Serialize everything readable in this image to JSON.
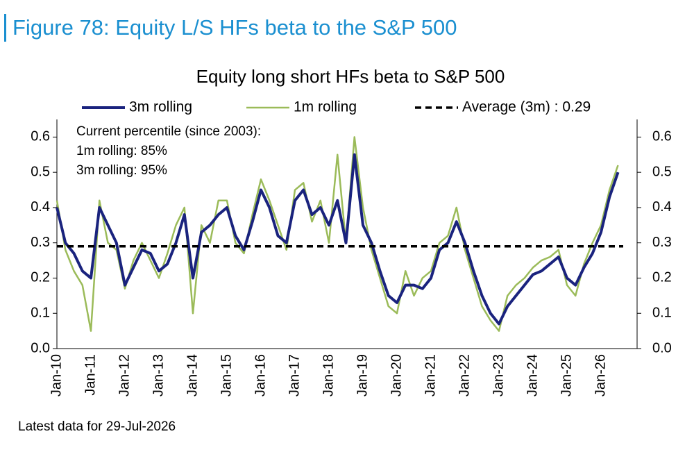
{
  "figure_title": "Figure 78: Equity L/S HFs beta to the S&P 500",
  "footnote": "Latest data for 29-Jul-2026",
  "chart_data": {
    "type": "line",
    "title": "Equity long short HFs beta to S&P 500",
    "annotations": [
      "Current percentile (since 2003):",
      "1m rolling: 85%",
      "3m rolling: 95%"
    ],
    "categories": [
      "Jan-10",
      null,
      null,
      null,
      "Jan-11",
      null,
      null,
      null,
      "Jan-12",
      null,
      null,
      null,
      "Jan-13",
      null,
      null,
      null,
      "Jan-14",
      null,
      null,
      null,
      "Jan-15",
      null,
      null,
      null,
      "Jan-16",
      null,
      null,
      null,
      "Jan-17",
      null,
      null,
      null,
      "Jan-18",
      null,
      null,
      null,
      "Jan-19",
      null,
      null,
      null,
      "Jan-20",
      null,
      null,
      null,
      "Jan-21",
      null,
      null,
      null,
      "Jan-22",
      null,
      null,
      null,
      "Jan-23",
      null,
      null,
      null,
      "Jan-24",
      null,
      null,
      null,
      "Jan-25",
      null,
      null,
      null,
      "Jan-26",
      null,
      null
    ],
    "series": [
      {
        "name": "3m rolling",
        "color": "#1a237e",
        "values": [
          0.4,
          0.3,
          0.27,
          0.22,
          0.2,
          0.4,
          0.35,
          0.3,
          0.18,
          0.23,
          0.28,
          0.27,
          0.22,
          0.24,
          0.3,
          0.38,
          0.2,
          0.33,
          0.35,
          0.38,
          0.4,
          0.32,
          0.28,
          0.36,
          0.45,
          0.4,
          0.32,
          0.3,
          0.42,
          0.45,
          0.38,
          0.4,
          0.35,
          0.42,
          0.3,
          0.55,
          0.35,
          0.3,
          0.22,
          0.15,
          0.13,
          0.18,
          0.18,
          0.17,
          0.2,
          0.28,
          0.3,
          0.36,
          0.3,
          0.22,
          0.15,
          0.1,
          0.07,
          0.12,
          0.15,
          0.18,
          0.21,
          0.22,
          0.24,
          0.26,
          0.2,
          0.18,
          0.23,
          0.27,
          0.33,
          0.43,
          0.5
        ]
      },
      {
        "name": "1m rolling",
        "color": "#9bbb59",
        "values": [
          0.42,
          0.28,
          0.22,
          0.18,
          0.05,
          0.42,
          0.3,
          0.28,
          0.17,
          0.25,
          0.3,
          0.25,
          0.2,
          0.27,
          0.35,
          0.4,
          0.1,
          0.35,
          0.3,
          0.42,
          0.42,
          0.3,
          0.27,
          0.38,
          0.48,
          0.42,
          0.35,
          0.28,
          0.45,
          0.47,
          0.36,
          0.42,
          0.3,
          0.55,
          0.3,
          0.6,
          0.4,
          0.28,
          0.2,
          0.12,
          0.1,
          0.22,
          0.15,
          0.2,
          0.22,
          0.3,
          0.32,
          0.4,
          0.28,
          0.2,
          0.12,
          0.08,
          0.05,
          0.15,
          0.18,
          0.2,
          0.23,
          0.25,
          0.26,
          0.28,
          0.18,
          0.15,
          0.24,
          0.3,
          0.35,
          0.45,
          0.52
        ]
      }
    ],
    "average": {
      "name": "Average (3m) : 0.29",
      "value": 0.29,
      "color": "#000000"
    },
    "ylim": [
      0,
      0.65
    ],
    "yticks": [
      {
        "value": 0,
        "label": "0.0"
      },
      0.1,
      0.2,
      0.3,
      0.4,
      0.5,
      0.6
    ],
    "y2lim": [
      0,
      0.65
    ],
    "y2ticks": [
      {
        "value": 0,
        "label": "0.0"
      },
      0.1,
      0.2,
      0.3,
      0.4,
      0.5,
      0.6
    ]
  }
}
